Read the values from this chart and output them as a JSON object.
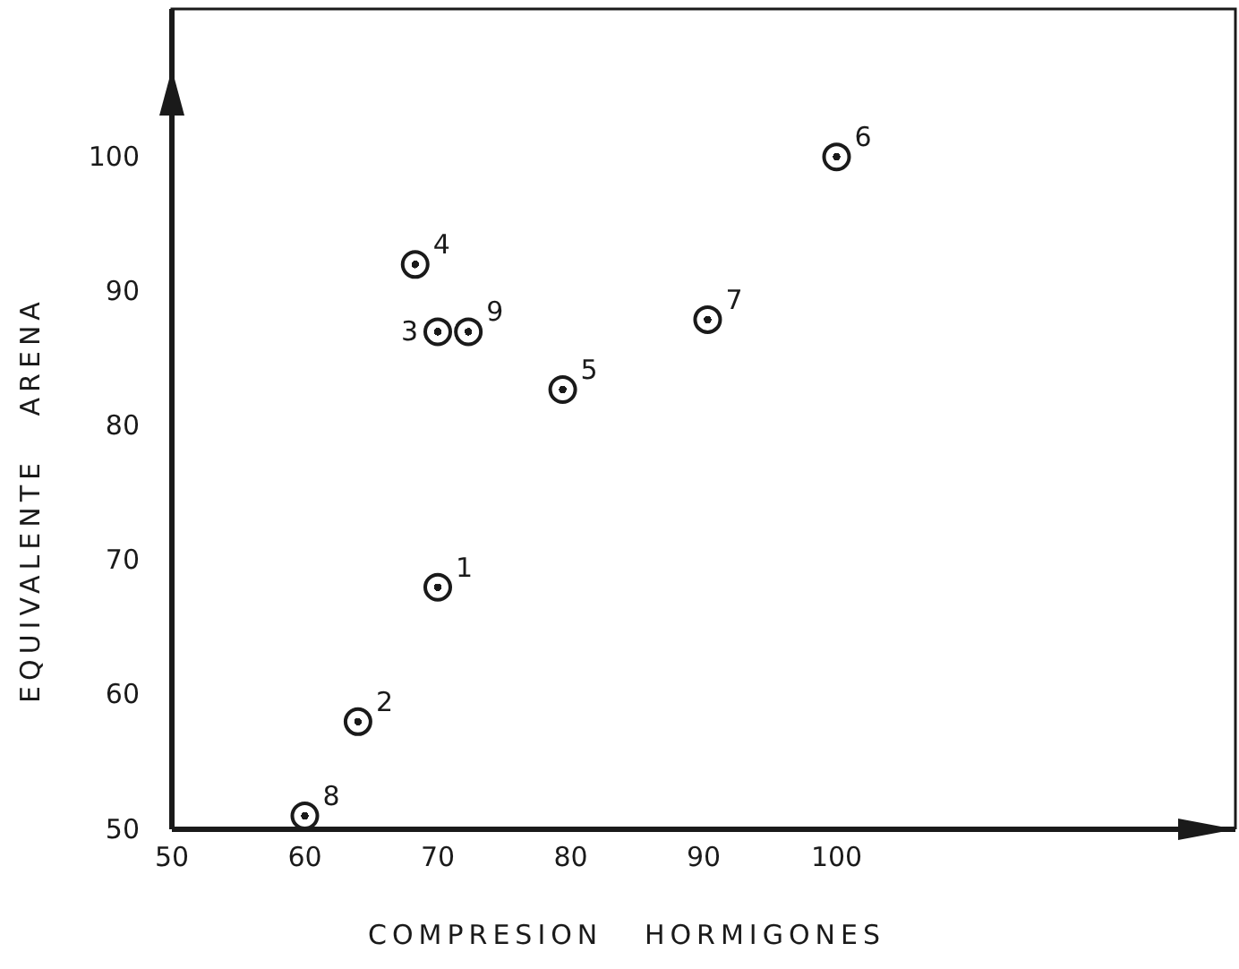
{
  "chart_data": {
    "type": "scatter",
    "xlabel": "COMPRESION   HORMIGONES",
    "ylabel": "EQUIVALENTE   ARENA",
    "x": [
      70,
      64,
      70,
      68.3,
      79.4,
      100,
      90.3,
      60,
      72.3
    ],
    "values": [
      68,
      58,
      87,
      92,
      82.7,
      100,
      87.9,
      51,
      87
    ],
    "color": "#1a1a1a",
    "marker": "circle",
    "xlim": [
      50,
      130
    ],
    "ylim": [
      50,
      111
    ],
    "xticks": [
      50,
      60,
      70,
      80,
      90,
      100
    ],
    "yticks": [
      50,
      60,
      70,
      80,
      90,
      100
    ],
    "annotations": [
      {
        "text": "1",
        "x": 70,
        "y": 68
      },
      {
        "text": "2",
        "x": 64,
        "y": 58
      },
      {
        "text": "3",
        "x": 70,
        "y": 87
      },
      {
        "text": "4",
        "x": 68.3,
        "y": 92
      },
      {
        "text": "5",
        "x": 79.4,
        "y": 82.7
      },
      {
        "text": "6",
        "x": 100,
        "y": 100
      },
      {
        "text": "7",
        "x": 90.3,
        "y": 87.9
      },
      {
        "text": "8",
        "x": 60,
        "y": 51
      },
      {
        "text": "9",
        "x": 72.3,
        "y": 87
      }
    ]
  }
}
